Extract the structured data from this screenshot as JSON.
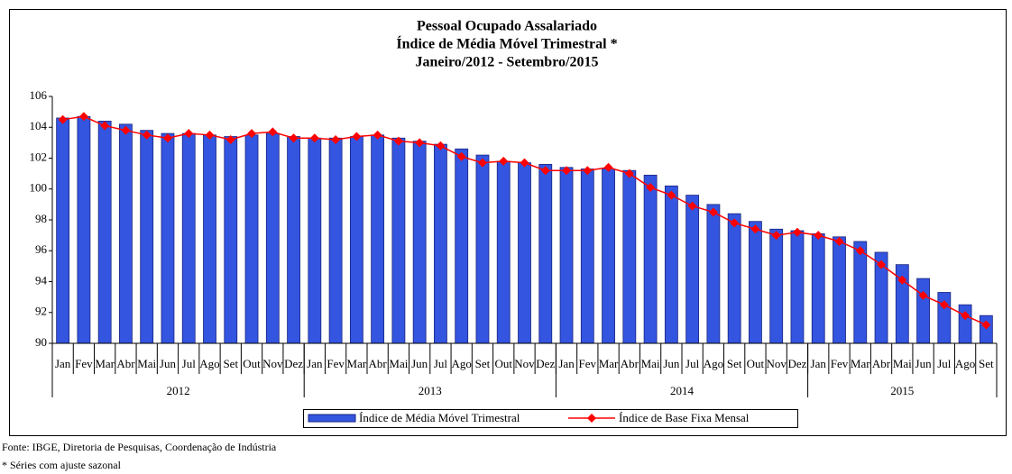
{
  "chart_data": {
    "type": "bar_line",
    "title": [
      "Pessoal Ocupado Assalariado",
      "Índice de Média Móvel Trimestral *",
      "Janeiro/2012 - Setembro/2015"
    ],
    "categories": [
      "Jan",
      "Fev",
      "Mar",
      "Abr",
      "Mai",
      "Jun",
      "Jul",
      "Ago",
      "Set",
      "Out",
      "Nov",
      "Dez",
      "Jan",
      "Fev",
      "Mar",
      "Abr",
      "Mai",
      "Jun",
      "Jul",
      "Ago",
      "Set",
      "Out",
      "Nov",
      "Dez",
      "Jan",
      "Fev",
      "Mar",
      "Abr",
      "Mai",
      "Jun",
      "Jul",
      "Ago",
      "Set",
      "Out",
      "Nov",
      "Dez",
      "Jan",
      "Fev",
      "Mar",
      "Abr",
      "Mai",
      "Jun",
      "Jul",
      "Ago",
      "Set"
    ],
    "years": [
      "2012",
      "2013",
      "2014",
      "2015"
    ],
    "series": [
      {
        "name": "Índice de Média Móvel Trimestral",
        "kind": "bar",
        "color": "#3355e0",
        "values": [
          104.6,
          104.7,
          104.4,
          104.2,
          103.8,
          103.6,
          103.6,
          103.5,
          103.4,
          103.5,
          103.6,
          103.4,
          103.3,
          103.3,
          103.4,
          103.5,
          103.3,
          103.1,
          102.9,
          102.6,
          102.2,
          101.8,
          101.7,
          101.6,
          101.4,
          101.3,
          101.3,
          101.2,
          100.9,
          100.2,
          99.6,
          99.0,
          98.4,
          97.9,
          97.4,
          97.3,
          97.1,
          96.9,
          96.6,
          95.9,
          95.1,
          94.2,
          93.3,
          92.5,
          91.8
        ]
      },
      {
        "name": "Índice de Base Fixa Mensal",
        "kind": "line",
        "color": "#ff0000",
        "values": [
          104.5,
          104.7,
          104.1,
          103.8,
          103.5,
          103.3,
          103.6,
          103.5,
          103.2,
          103.6,
          103.7,
          103.3,
          103.3,
          103.2,
          103.4,
          103.5,
          103.1,
          103.0,
          102.8,
          102.1,
          101.7,
          101.8,
          101.7,
          101.2,
          101.2,
          101.2,
          101.4,
          101.0,
          100.1,
          99.6,
          98.9,
          98.5,
          97.8,
          97.4,
          97.0,
          97.2,
          97.0,
          96.6,
          96.0,
          95.1,
          94.1,
          93.1,
          92.5,
          91.8,
          91.2
        ]
      }
    ],
    "ylim": [
      90,
      106
    ],
    "yticks": [
      90,
      92,
      94,
      96,
      98,
      100,
      102,
      104,
      106
    ],
    "notes": [
      "Fonte: IBGE, Diretoria de Pesquisas, Coordenação de Indústria",
      "* Séries com ajuste sazonal"
    ]
  }
}
